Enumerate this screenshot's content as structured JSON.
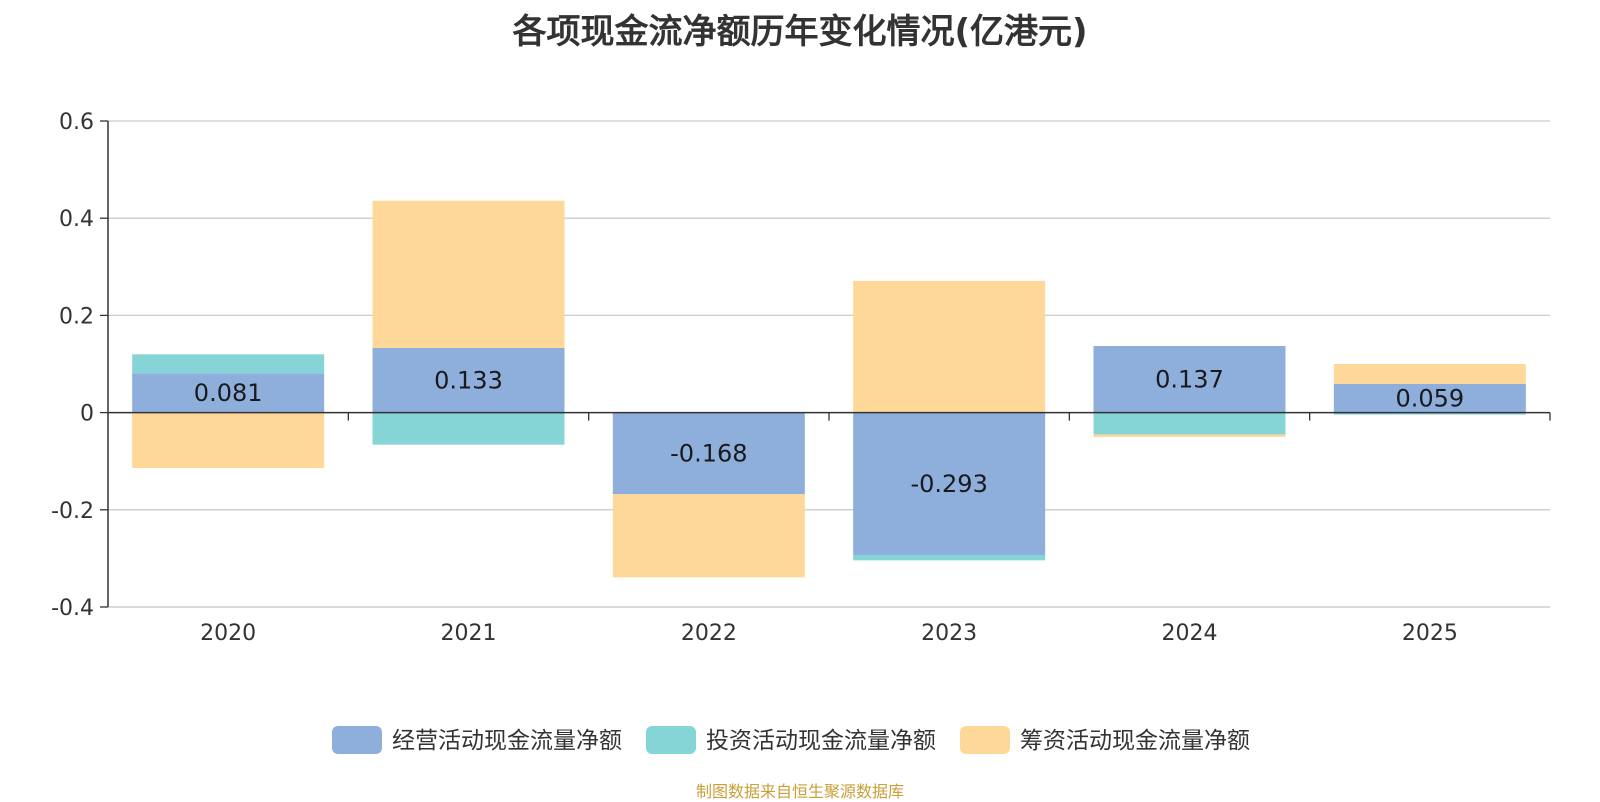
{
  "chart_data": {
    "type": "bar",
    "stacked": true,
    "title": "各项现金流净额历年变化情况(亿港元)",
    "categories": [
      "2020",
      "2021",
      "2022",
      "2023",
      "2024",
      "2025"
    ],
    "series": [
      {
        "name": "经营活动现金流量净额",
        "color": "#8eaedc",
        "values": [
          0.081,
          0.133,
          -0.168,
          -0.293,
          0.137,
          0.059
        ]
      },
      {
        "name": "投资活动现金流量净额",
        "color": "#86d5d6",
        "values": [
          0.039,
          -0.066,
          0,
          -0.011,
          -0.045,
          -0.004
        ]
      },
      {
        "name": "筹资活动现金流量净额",
        "color": "#fed899",
        "values": [
          -0.114,
          0.303,
          -0.171,
          0.271,
          -0.005,
          0.041
        ]
      }
    ],
    "data_labels": [
      "0.081",
      "0.133",
      "-0.168",
      "-0.293",
      "0.137",
      "0.059"
    ],
    "y_ticks": [
      "0.6",
      "0.4",
      "0.2",
      "0",
      "-0.2",
      "-0.4"
    ],
    "ylim": [
      -0.4,
      0.6
    ],
    "grid": true,
    "legend_position": "bottom"
  },
  "source_text": "制图数据来自恒生聚源数据库"
}
